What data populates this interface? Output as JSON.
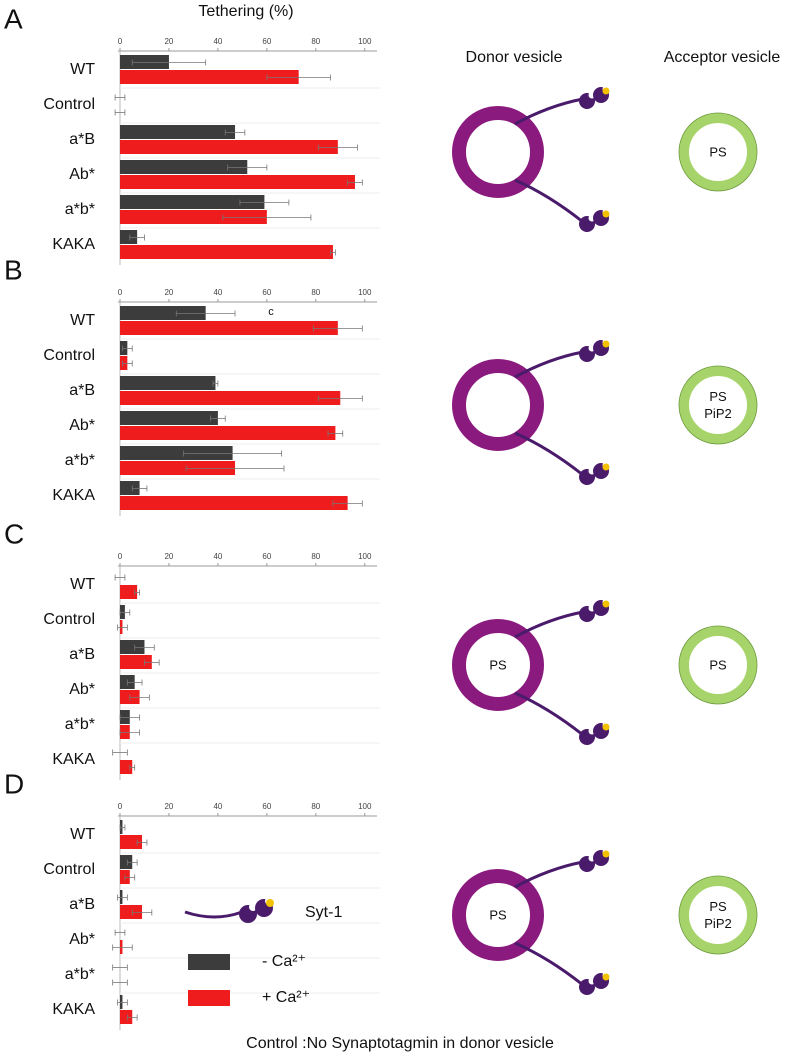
{
  "title": "Tethering (%)",
  "columns": [
    "Donor vesicle",
    "Acceptor vesicle"
  ],
  "protein_label": "Syt-1",
  "footnote": "Control :No Synaptotagmin in donor vesicle",
  "chart_data": [
    {
      "type": "hbar",
      "panel": "A",
      "categories": [
        "WT",
        "Control",
        "a*B",
        "Ab*",
        "a*b*",
        "KAKA"
      ],
      "xlim": [
        0,
        105
      ],
      "xticks": [
        0,
        20,
        40,
        60,
        80,
        100
      ],
      "acceptor_vesicle": [
        "PS"
      ],
      "series": [
        {
          "name": "- Ca²⁺",
          "color": "#3c3c3c",
          "values": [
            20,
            0,
            47,
            52,
            59,
            7
          ],
          "errors": [
            15,
            2,
            4,
            8,
            10,
            3
          ]
        },
        {
          "name": "+ Ca²⁺",
          "color": "#ee1c1c",
          "values": [
            73,
            0,
            89,
            96,
            60,
            87
          ],
          "errors": [
            13,
            2,
            8,
            3,
            18,
            1
          ]
        }
      ]
    },
    {
      "type": "hbar",
      "panel": "B",
      "categories": [
        "WT",
        "Control",
        "a*B",
        "Ab*",
        "a*b*",
        "KAKA"
      ],
      "xlim": [
        0,
        105
      ],
      "xticks": [
        0,
        20,
        40,
        60,
        80,
        100
      ],
      "annotation": "c",
      "acceptor_vesicle": [
        "PS",
        "PiP2"
      ],
      "series": [
        {
          "name": "- Ca²⁺",
          "color": "#3c3c3c",
          "values": [
            35,
            3,
            39,
            40,
            46,
            8
          ],
          "errors": [
            12,
            2,
            1,
            3,
            20,
            3
          ]
        },
        {
          "name": "+ Ca²⁺",
          "color": "#ee1c1c",
          "values": [
            89,
            3,
            90,
            88,
            47,
            93
          ],
          "errors": [
            10,
            2,
            9,
            3,
            20,
            6
          ]
        }
      ]
    },
    {
      "type": "hbar",
      "panel": "C",
      "categories": [
        "WT",
        "Control",
        "a*B",
        "Ab*",
        "a*b*",
        "KAKA"
      ],
      "xlim": [
        0,
        105
      ],
      "xticks": [
        0,
        20,
        40,
        60,
        80,
        100
      ],
      "donor_vesicle": "PS",
      "acceptor_vesicle": [
        "PS"
      ],
      "series": [
        {
          "name": "- Ca²⁺",
          "color": "#3c3c3c",
          "values": [
            0,
            2,
            10,
            6,
            4,
            0
          ],
          "errors": [
            2,
            2,
            4,
            3,
            4,
            3
          ]
        },
        {
          "name": "+ Ca²⁺",
          "color": "#ee1c1c",
          "values": [
            7,
            1,
            13,
            8,
            4,
            5
          ],
          "errors": [
            1,
            2,
            3,
            4,
            4,
            1
          ]
        }
      ]
    },
    {
      "type": "hbar",
      "panel": "D",
      "categories": [
        "WT",
        "Control",
        "a*B",
        "Ab*",
        "a*b*",
        "KAKA"
      ],
      "xlim": [
        0,
        105
      ],
      "xticks": [
        0,
        20,
        40,
        60,
        80,
        100
      ],
      "donor_vesicle": "PS",
      "acceptor_vesicle": [
        "PS",
        "PiP2"
      ],
      "series": [
        {
          "name": "- Ca²⁺",
          "color": "#3c3c3c",
          "values": [
            1,
            5,
            1,
            0,
            0,
            1
          ],
          "errors": [
            1,
            2,
            2,
            2,
            3,
            2
          ]
        },
        {
          "name": "+ Ca²⁺",
          "color": "#ee1c1c",
          "values": [
            9,
            4,
            9,
            1,
            0,
            5
          ],
          "errors": [
            2,
            2,
            4,
            4,
            3,
            2
          ]
        }
      ]
    }
  ]
}
